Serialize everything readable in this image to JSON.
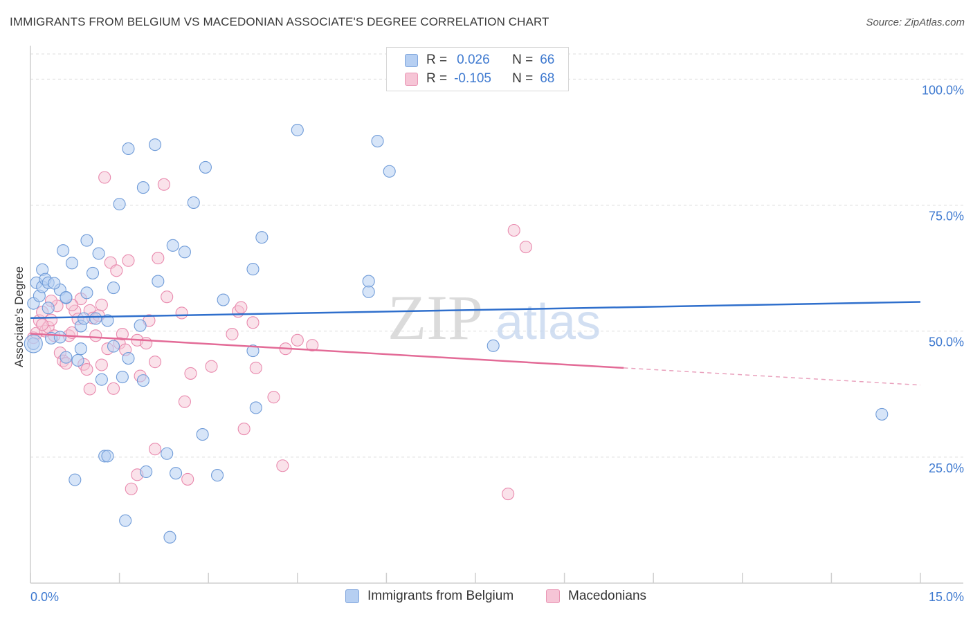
{
  "title": "IMMIGRANTS FROM BELGIUM VS MACEDONIAN ASSOCIATE'S DEGREE CORRELATION CHART",
  "source": "Source: ZipAtlas.com",
  "legend": {
    "r_label": "R =",
    "n_label": "N =",
    "series1": {
      "r": "0.026",
      "n": "66"
    },
    "series2": {
      "r": "-0.105",
      "n": "68"
    }
  },
  "watermark": {
    "zip": "ZIP",
    "atlas": "atlas"
  },
  "colors": {
    "blue": "#3f7ad0",
    "blue_fill": "#b6cff2",
    "pink": "#e36b97",
    "pink_fill": "#f6c5d6",
    "axis_text": "#3f7ad0",
    "grid": "#dddddd"
  },
  "chart_data": {
    "type": "scatter",
    "title": "IMMIGRANTS FROM BELGIUM VS MACEDONIAN ASSOCIATE'S DEGREE CORRELATION CHART",
    "xlabel": "",
    "ylabel": "Associate's Degree",
    "xlim": [
      0,
      15
    ],
    "ylim": [
      0,
      105
    ],
    "x_tick_labels": [
      "0.0%",
      "15.0%"
    ],
    "y_ticks": [
      25,
      50,
      75,
      100
    ],
    "y_tick_labels": [
      "25.0%",
      "50.0%",
      "75.0%",
      "100.0%"
    ],
    "series": [
      {
        "name": "Immigrants from Belgium",
        "color": "#3f7ad0",
        "trend": {
          "x": [
            0,
            15
          ],
          "y": [
            52.6,
            55.8
          ],
          "dashed_from": null
        },
        "points": [
          [
            0.05,
            47.5
          ],
          [
            0.05,
            55.5
          ],
          [
            0.1,
            59.6
          ],
          [
            0.15,
            57.0
          ],
          [
            0.2,
            58.8
          ],
          [
            0.2,
            62.2
          ],
          [
            0.25,
            60.3
          ],
          [
            0.3,
            59.6
          ],
          [
            0.3,
            54.6
          ],
          [
            0.35,
            48.6
          ],
          [
            0.5,
            58.2
          ],
          [
            0.5,
            48.8
          ],
          [
            0.55,
            66.0
          ],
          [
            0.6,
            56.6
          ],
          [
            0.6,
            44.8
          ],
          [
            0.7,
            63.5
          ],
          [
            0.75,
            20.5
          ],
          [
            0.8,
            44.2
          ],
          [
            0.85,
            46.5
          ],
          [
            0.85,
            51.0
          ],
          [
            0.9,
            52.5
          ],
          [
            0.95,
            57.6
          ],
          [
            0.95,
            68.0
          ],
          [
            1.05,
            61.5
          ],
          [
            1.1,
            52.5
          ],
          [
            1.15,
            65.4
          ],
          [
            1.2,
            40.4
          ],
          [
            1.25,
            25.2
          ],
          [
            1.3,
            52.1
          ],
          [
            1.3,
            25.2
          ],
          [
            1.4,
            58.6
          ],
          [
            1.4,
            47.0
          ],
          [
            1.5,
            75.2
          ],
          [
            1.55,
            40.9
          ],
          [
            1.6,
            12.4
          ],
          [
            1.65,
            44.6
          ],
          [
            1.65,
            86.2
          ],
          [
            1.85,
            51.1
          ],
          [
            1.9,
            40.2
          ],
          [
            1.9,
            78.5
          ],
          [
            1.95,
            22.1
          ],
          [
            2.1,
            87.0
          ],
          [
            2.15,
            59.9
          ],
          [
            2.3,
            25.7
          ],
          [
            2.35,
            9.1
          ],
          [
            2.4,
            67.0
          ],
          [
            2.45,
            21.8
          ],
          [
            2.6,
            65.7
          ],
          [
            2.75,
            75.5
          ],
          [
            2.9,
            29.5
          ],
          [
            2.95,
            82.5
          ],
          [
            3.15,
            21.4
          ],
          [
            3.25,
            56.2
          ],
          [
            3.75,
            46.1
          ],
          [
            3.8,
            34.8
          ],
          [
            3.75,
            62.3
          ],
          [
            3.9,
            68.6
          ],
          [
            4.5,
            89.9
          ],
          [
            5.7,
            59.9
          ],
          [
            5.7,
            57.8
          ],
          [
            5.85,
            87.7
          ],
          [
            6.05,
            81.7
          ],
          [
            7.8,
            47.1
          ],
          [
            14.35,
            33.5
          ],
          [
            0.6,
            56.7
          ],
          [
            0.4,
            59.5
          ]
        ]
      },
      {
        "name": "Macedonians",
        "color": "#e36b97",
        "trend": {
          "x": [
            0,
            15
          ],
          "y": [
            49.5,
            39.3
          ],
          "dashed_from": 10.0
        },
        "points": [
          [
            0.05,
            48.7
          ],
          [
            0.1,
            49.6
          ],
          [
            0.15,
            52.1
          ],
          [
            0.2,
            53.8
          ],
          [
            0.25,
            50.0
          ],
          [
            0.3,
            50.8
          ],
          [
            0.35,
            52.2
          ],
          [
            0.4,
            49.1
          ],
          [
            0.45,
            55.0
          ],
          [
            0.5,
            45.7
          ],
          [
            0.55,
            44.1
          ],
          [
            0.6,
            43.6
          ],
          [
            0.65,
            49.1
          ],
          [
            0.7,
            49.7
          ],
          [
            0.75,
            54.0
          ],
          [
            0.8,
            52.4
          ],
          [
            0.85,
            56.4
          ],
          [
            0.9,
            43.4
          ],
          [
            0.95,
            42.4
          ],
          [
            1.0,
            54.1
          ],
          [
            1.0,
            38.5
          ],
          [
            1.05,
            52.6
          ],
          [
            1.1,
            49.1
          ],
          [
            1.15,
            53.1
          ],
          [
            1.2,
            55.2
          ],
          [
            1.2,
            43.3
          ],
          [
            1.25,
            80.5
          ],
          [
            1.3,
            46.5
          ],
          [
            1.35,
            63.6
          ],
          [
            1.4,
            38.6
          ],
          [
            1.45,
            62.0
          ],
          [
            1.5,
            47.6
          ],
          [
            1.55,
            49.4
          ],
          [
            1.6,
            46.3
          ],
          [
            1.65,
            64.0
          ],
          [
            1.7,
            18.7
          ],
          [
            1.8,
            21.5
          ],
          [
            1.8,
            48.2
          ],
          [
            1.85,
            41.1
          ],
          [
            1.95,
            47.6
          ],
          [
            2.0,
            52.1
          ],
          [
            2.1,
            26.6
          ],
          [
            2.1,
            43.9
          ],
          [
            2.15,
            64.5
          ],
          [
            2.25,
            79.1
          ],
          [
            2.3,
            56.8
          ],
          [
            2.55,
            53.6
          ],
          [
            2.6,
            36.0
          ],
          [
            2.65,
            20.6
          ],
          [
            2.7,
            41.6
          ],
          [
            3.05,
            43.0
          ],
          [
            3.4,
            49.4
          ],
          [
            3.5,
            53.9
          ],
          [
            3.55,
            54.7
          ],
          [
            3.6,
            30.6
          ],
          [
            3.75,
            51.7
          ],
          [
            3.8,
            42.7
          ],
          [
            4.1,
            36.9
          ],
          [
            4.25,
            23.3
          ],
          [
            4.3,
            46.5
          ],
          [
            4.5,
            48.2
          ],
          [
            4.75,
            47.2
          ],
          [
            8.05,
            17.7
          ],
          [
            8.15,
            70.0
          ],
          [
            8.35,
            66.7
          ],
          [
            0.35,
            56.0
          ],
          [
            0.7,
            55.2
          ],
          [
            0.2,
            51.3
          ]
        ]
      }
    ]
  }
}
